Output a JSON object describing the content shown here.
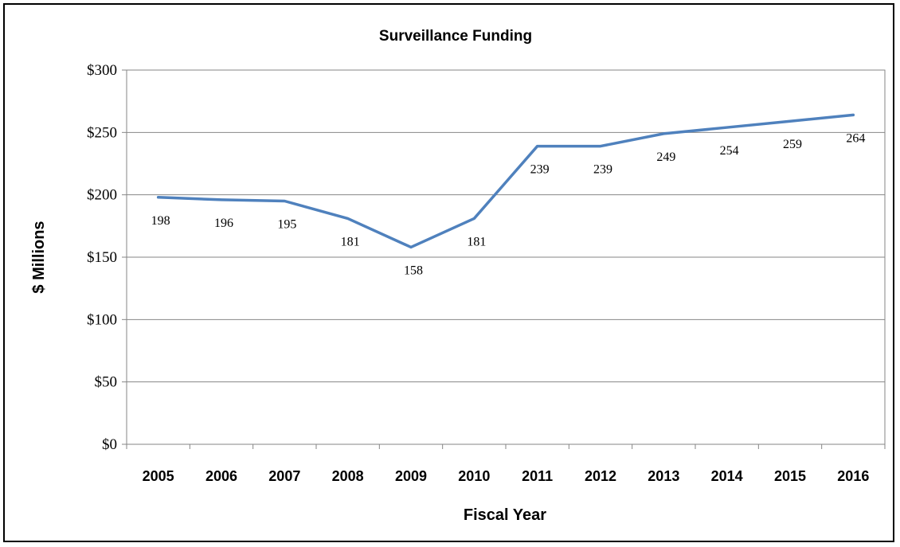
{
  "chart_data": {
    "type": "line",
    "title": "Surveillance Funding",
    "xlabel": "Fiscal Year",
    "ylabel": "$ Millions",
    "categories": [
      "2005",
      "2006",
      "2007",
      "2008",
      "2009",
      "2010",
      "2011",
      "2012",
      "2013",
      "2014",
      "2015",
      "2016"
    ],
    "series": [
      {
        "values": [
          198,
          196,
          195,
          181,
          158,
          181,
          239,
          239,
          249,
          254,
          259,
          264
        ]
      }
    ],
    "data_labels": [
      "198",
      "196",
      "195",
      "181",
      "158",
      "181",
      "239",
      "239",
      "249",
      "254",
      "259",
      "264"
    ],
    "ylim": [
      0,
      300
    ],
    "yticks": [
      0,
      50,
      100,
      150,
      200,
      250,
      300
    ],
    "ytick_labels": [
      "$0",
      "$50",
      "$100",
      "$150",
      "$200",
      "$250",
      "$300"
    ],
    "grid": true,
    "legend": "none",
    "line_color": "#4F81BD"
  }
}
